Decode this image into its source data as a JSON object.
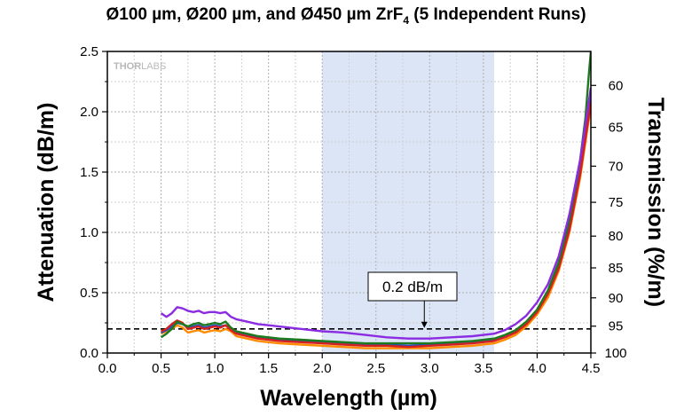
{
  "chart_data": {
    "type": "line",
    "title_parts": {
      "main": "Ø100 µm, Ø200 µm, and Ø450 µm ZrF",
      "sub": "4",
      "tail": " (5 Independent Runs)"
    },
    "watermark": {
      "strong": "THOR",
      "light": "LABS"
    },
    "xlabel": "Wavelength (µm)",
    "ylabel": "Attenuation (dB/m)",
    "y2label": "Transmission (%/m)",
    "xlim": [
      0.0,
      4.5
    ],
    "ylim": [
      0.0,
      2.5
    ],
    "x_ticks": [
      "0.0",
      "0.5",
      "1.0",
      "1.5",
      "2.0",
      "2.5",
      "3.0",
      "3.5",
      "4.0",
      "4.5"
    ],
    "y_ticks": [
      "0.0",
      "0.5",
      "1.0",
      "1.5",
      "2.0",
      "2.5"
    ],
    "y2_ticks": [
      "60",
      "65",
      "70",
      "75",
      "80",
      "85",
      "90",
      "95",
      "100"
    ],
    "grid": true,
    "shaded_region": {
      "x_start": 2.0,
      "x_end": 3.6,
      "color": "#dbe5f5"
    },
    "reference_line": {
      "y": 0.2,
      "style": "dashed",
      "label": "0.2 dB/m"
    },
    "series": [
      {
        "color": "#ff8c00",
        "x": [
          0.5,
          0.55,
          0.6,
          0.65,
          0.7,
          0.75,
          0.8,
          0.85,
          0.9,
          0.95,
          1.0,
          1.05,
          1.1,
          1.15,
          1.2,
          1.3,
          1.4,
          1.5,
          1.6,
          1.8,
          2.0,
          2.2,
          2.4,
          2.6,
          2.8,
          3.0,
          3.2,
          3.4,
          3.6,
          3.7,
          3.8,
          3.9,
          4.0,
          4.1,
          4.2,
          4.3,
          4.4,
          4.5
        ],
        "values": [
          0.16,
          0.18,
          0.2,
          0.23,
          0.21,
          0.17,
          0.18,
          0.19,
          0.17,
          0.18,
          0.19,
          0.18,
          0.2,
          0.18,
          0.14,
          0.12,
          0.1,
          0.09,
          0.08,
          0.07,
          0.06,
          0.05,
          0.04,
          0.04,
          0.04,
          0.04,
          0.05,
          0.06,
          0.08,
          0.11,
          0.15,
          0.22,
          0.32,
          0.46,
          0.68,
          1.0,
          1.45,
          2.05
        ]
      },
      {
        "color": "#1f4fc4",
        "x": [
          0.5,
          0.55,
          0.6,
          0.65,
          0.7,
          0.75,
          0.8,
          0.85,
          0.9,
          0.95,
          1.0,
          1.05,
          1.1,
          1.15,
          1.2,
          1.3,
          1.4,
          1.5,
          1.6,
          1.8,
          2.0,
          2.2,
          2.4,
          2.6,
          2.8,
          3.0,
          3.2,
          3.4,
          3.6,
          3.7,
          3.8,
          3.9,
          4.0,
          4.1,
          4.2,
          4.3,
          4.4,
          4.5
        ],
        "values": [
          0.17,
          0.19,
          0.22,
          0.25,
          0.24,
          0.21,
          0.22,
          0.23,
          0.21,
          0.22,
          0.23,
          0.22,
          0.23,
          0.2,
          0.17,
          0.15,
          0.13,
          0.12,
          0.11,
          0.1,
          0.09,
          0.08,
          0.07,
          0.07,
          0.06,
          0.07,
          0.08,
          0.09,
          0.11,
          0.14,
          0.18,
          0.25,
          0.35,
          0.5,
          0.72,
          1.05,
          1.5,
          2.1
        ]
      },
      {
        "color": "#d62020",
        "x": [
          0.5,
          0.55,
          0.6,
          0.65,
          0.7,
          0.75,
          0.8,
          0.85,
          0.9,
          0.95,
          1.0,
          1.05,
          1.1,
          1.15,
          1.2,
          1.3,
          1.4,
          1.5,
          1.6,
          1.8,
          2.0,
          2.2,
          2.4,
          2.6,
          2.8,
          3.0,
          3.2,
          3.4,
          3.6,
          3.7,
          3.8,
          3.9,
          4.0,
          4.1,
          4.2,
          4.3,
          4.4,
          4.5
        ],
        "values": [
          0.18,
          0.2,
          0.24,
          0.27,
          0.25,
          0.2,
          0.21,
          0.22,
          0.2,
          0.21,
          0.22,
          0.21,
          0.23,
          0.19,
          0.16,
          0.14,
          0.12,
          0.11,
          0.1,
          0.09,
          0.08,
          0.07,
          0.06,
          0.06,
          0.05,
          0.06,
          0.07,
          0.08,
          0.1,
          0.13,
          0.17,
          0.24,
          0.34,
          0.49,
          0.7,
          1.02,
          1.48,
          2.08
        ]
      },
      {
        "color": "#1e7a1e",
        "x": [
          0.5,
          0.55,
          0.6,
          0.65,
          0.7,
          0.75,
          0.8,
          0.85,
          0.9,
          0.95,
          1.0,
          1.05,
          1.1,
          1.15,
          1.2,
          1.3,
          1.4,
          1.5,
          1.6,
          1.8,
          2.0,
          2.2,
          2.4,
          2.6,
          2.8,
          3.0,
          3.2,
          3.4,
          3.6,
          3.7,
          3.8,
          3.9,
          4.0,
          4.1,
          4.2,
          4.3,
          4.4,
          4.45,
          4.48,
          4.5
        ],
        "values": [
          0.13,
          0.16,
          0.2,
          0.26,
          0.24,
          0.22,
          0.24,
          0.25,
          0.23,
          0.24,
          0.25,
          0.24,
          0.26,
          0.21,
          0.18,
          0.16,
          0.14,
          0.13,
          0.12,
          0.11,
          0.1,
          0.09,
          0.08,
          0.08,
          0.08,
          0.08,
          0.09,
          0.1,
          0.12,
          0.15,
          0.19,
          0.26,
          0.36,
          0.52,
          0.75,
          1.1,
          1.6,
          1.95,
          2.3,
          2.5
        ]
      },
      {
        "color": "#8b2be2",
        "x": [
          0.5,
          0.55,
          0.6,
          0.65,
          0.7,
          0.75,
          0.8,
          0.85,
          0.9,
          0.95,
          1.0,
          1.05,
          1.1,
          1.15,
          1.2,
          1.3,
          1.4,
          1.5,
          1.6,
          1.8,
          2.0,
          2.2,
          2.4,
          2.6,
          2.8,
          3.0,
          3.2,
          3.4,
          3.6,
          3.7,
          3.8,
          3.9,
          4.0,
          4.1,
          4.2,
          4.3,
          4.4,
          4.5
        ],
        "values": [
          0.33,
          0.3,
          0.33,
          0.38,
          0.37,
          0.35,
          0.34,
          0.35,
          0.33,
          0.34,
          0.34,
          0.33,
          0.34,
          0.3,
          0.28,
          0.26,
          0.24,
          0.23,
          0.22,
          0.2,
          0.18,
          0.17,
          0.15,
          0.13,
          0.12,
          0.12,
          0.13,
          0.14,
          0.16,
          0.19,
          0.24,
          0.31,
          0.42,
          0.57,
          0.8,
          1.15,
          1.6,
          2.2
        ]
      }
    ]
  }
}
